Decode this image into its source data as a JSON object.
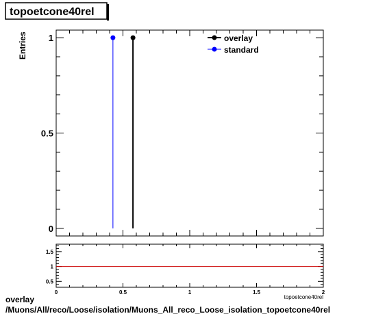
{
  "title": "topoetcone40rel",
  "footer": {
    "line1": "overlay",
    "line2": "/Muons/All/reco/Loose/isolation/Muons_All_reco_Loose_isolation_topoetcone40rel"
  },
  "chart_data": [
    {
      "type": "scatter",
      "title": "topoetcone40rel",
      "ylabel": "Entries",
      "xlabel": "topoetcone40rel",
      "xlim": [
        0,
        2
      ],
      "ylim": [
        -0.04,
        1.04
      ],
      "y_ticks": [
        0,
        0.5,
        1
      ],
      "y_tick_labels": [
        "0",
        "0.5",
        "1"
      ],
      "grid": false,
      "legend_position": "top-right",
      "series": [
        {
          "name": "overlay",
          "color": "#000000",
          "x": [
            0.575
          ],
          "y": [
            1
          ],
          "x_err": [
            0.01
          ]
        },
        {
          "name": "standard",
          "color": "#0000ff",
          "x": [
            0.425
          ],
          "y": [
            1
          ],
          "x_err": [
            0.01
          ]
        }
      ]
    },
    {
      "type": "line",
      "xlim": [
        0,
        2
      ],
      "ylim": [
        0.3,
        1.75
      ],
      "x_ticks": [
        0,
        0.5,
        1,
        1.5,
        2
      ],
      "x_tick_labels": [
        "0",
        "0.5",
        "1",
        "1.5",
        "2"
      ],
      "y_ticks": [
        0.5,
        1,
        1.5
      ],
      "y_tick_labels": [
        "0.5",
        "1",
        "1.5"
      ],
      "reference_line": {
        "y": 1,
        "color": "#cc0000"
      }
    }
  ]
}
